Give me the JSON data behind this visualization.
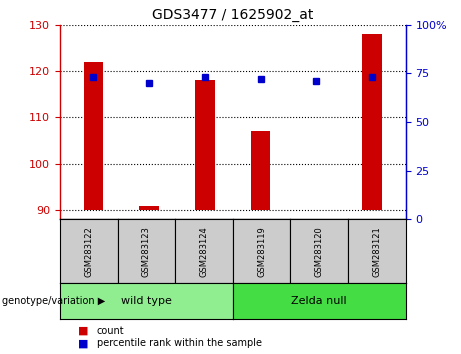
{
  "title": "GDS3477 / 1625902_at",
  "samples": [
    "GSM283122",
    "GSM283123",
    "GSM283124",
    "GSM283119",
    "GSM283120",
    "GSM283121"
  ],
  "bar_values": [
    122,
    91,
    118,
    107,
    90,
    128
  ],
  "percentile_values": [
    73,
    70,
    73,
    72,
    71,
    73
  ],
  "ylim_left": [
    88,
    130
  ],
  "ylim_right": [
    0,
    100
  ],
  "yticks_left": [
    90,
    100,
    110,
    120,
    130
  ],
  "yticks_right": [
    0,
    25,
    50,
    75,
    100
  ],
  "bar_color": "#cc0000",
  "dot_color": "#0000cc",
  "bar_width": 0.35,
  "groups": [
    {
      "label": "wild type",
      "color": "#90ee90",
      "start": 0,
      "end": 3
    },
    {
      "label": "Zelda null",
      "color": "#44dd44",
      "start": 3,
      "end": 6
    }
  ],
  "legend_items": [
    {
      "label": "count",
      "color": "#cc0000"
    },
    {
      "label": "percentile rank within the sample",
      "color": "#0000cc"
    }
  ],
  "genotype_label": "genotype/variation",
  "left_tick_color": "#cc0000",
  "right_tick_color": "#0000cc",
  "sample_box_color": "#cccccc",
  "fig_width": 4.61,
  "fig_height": 3.54
}
